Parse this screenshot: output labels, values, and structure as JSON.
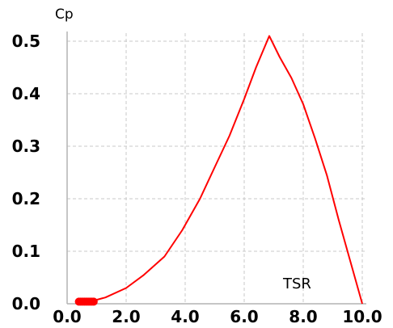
{
  "chart_data": {
    "type": "line",
    "ylabel": "Cp",
    "xlabel": "TSR",
    "xlim": [
      0.0,
      10.0
    ],
    "ylim": [
      0.0,
      0.5
    ],
    "x_ticks": [
      "0.0",
      "2.0",
      "4.0",
      "6.0",
      "8.0",
      "10.0"
    ],
    "y_ticks": [
      "0.0",
      "0.1",
      "0.2",
      "0.3",
      "0.4",
      "0.5"
    ],
    "grid": true,
    "grid_style": "dashed",
    "colors": {
      "series": "#ff0000",
      "grid": "#c8c8c8",
      "axis": "#b4b4b4"
    },
    "series": [
      {
        "x": [
          0.5,
          0.9,
          1.3,
          2.0,
          2.6,
          3.3,
          3.9,
          4.5,
          5.0,
          5.5,
          6.0,
          6.4,
          6.85,
          7.2,
          7.6,
          8.0,
          8.4,
          8.8,
          9.2,
          9.6,
          10.0
        ],
        "y": [
          0.003,
          0.006,
          0.012,
          0.03,
          0.055,
          0.09,
          0.14,
          0.2,
          0.26,
          0.32,
          0.39,
          0.45,
          0.51,
          0.47,
          0.43,
          0.38,
          0.315,
          0.245,
          0.16,
          0.08,
          0.0
        ]
      }
    ],
    "marker_cluster": {
      "x_from": 0.4,
      "x_to": 0.9,
      "y": 0.004
    }
  }
}
